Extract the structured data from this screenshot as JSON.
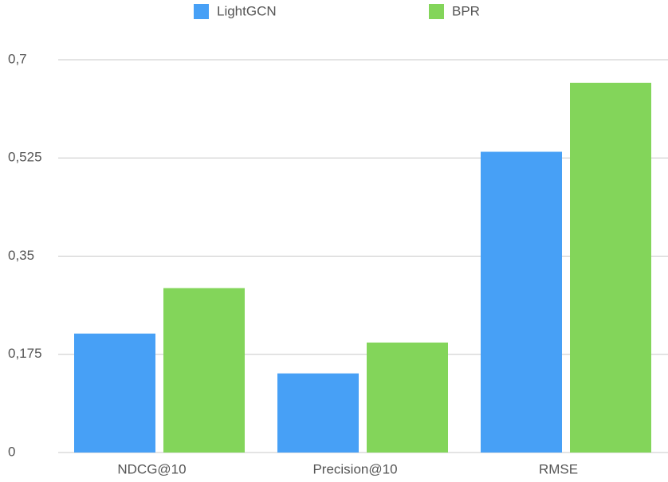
{
  "chart_data": {
    "type": "bar",
    "categories": [
      "NDCG@10",
      "Precision@10",
      "RMSE"
    ],
    "series": [
      {
        "name": "LightGCN",
        "color": "#47a0f6",
        "values": [
          0.212,
          0.141,
          0.536
        ]
      },
      {
        "name": "BPR",
        "color": "#83d55a",
        "values": [
          0.293,
          0.196,
          0.659
        ]
      }
    ],
    "ylim": [
      0,
      0.7
    ],
    "yticks": [
      0,
      {
        "value": 0.175,
        "label": "0,175"
      },
      {
        "value": 0.35,
        "label": "0,35"
      },
      {
        "value": 0.525,
        "label": "0,525"
      },
      {
        "value": 0.7,
        "label": "0,7"
      }
    ],
    "grid": true,
    "legend": "top"
  }
}
